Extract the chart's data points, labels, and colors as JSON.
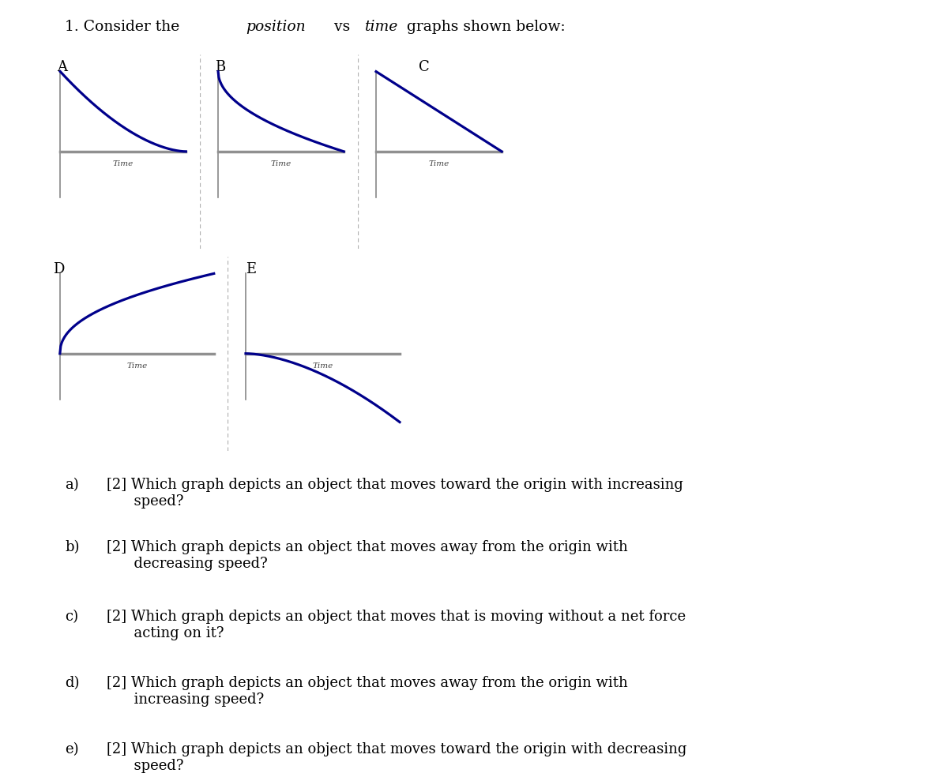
{
  "title_parts": [
    {
      "text": "1. Consider the ",
      "style": "normal"
    },
    {
      "text": "position",
      "style": "italic"
    },
    {
      "text": " vs ",
      "style": "normal"
    },
    {
      "text": "time",
      "style": "italic"
    },
    {
      "text": " graphs shown below:",
      "style": "normal"
    }
  ],
  "bg_color": "#ffffff",
  "curve_color": "#00008B",
  "axis_color": "#808080",
  "yaxis_color": "#888888",
  "dashed_color": "#b0b0b0",
  "label_color": "#000000",
  "graphs": [
    {
      "label": "A",
      "type": "concave_up_decrease",
      "x_label": "Time"
    },
    {
      "label": "B",
      "type": "concave_down_decrease",
      "x_label": "Time"
    },
    {
      "label": "C",
      "type": "linear_decrease",
      "x_label": "Time"
    },
    {
      "label": "D",
      "type": "concave_down_increase",
      "x_label": "Time"
    },
    {
      "label": "E",
      "type": "concave_up_decrease_below",
      "x_label": "Time"
    }
  ],
  "questions": [
    {
      "letter": "a)",
      "text": "[2] Which graph depicts an object that moves toward the origin with increasing\n      speed?"
    },
    {
      "letter": "b)",
      "text": "[2] Which graph depicts an object that moves away from the origin with\n      decreasing speed?"
    },
    {
      "letter": "c)",
      "text": "[2] Which graph depicts an object that moves that is moving without a net force\n      acting on it?"
    },
    {
      "letter": "d)",
      "text": "[2] Which graph depicts an object that moves away from the origin with\n      increasing speed?"
    },
    {
      "letter": "e)",
      "text": "[2] Which graph depicts an object that moves toward the origin with decreasing\n      speed?"
    }
  ]
}
